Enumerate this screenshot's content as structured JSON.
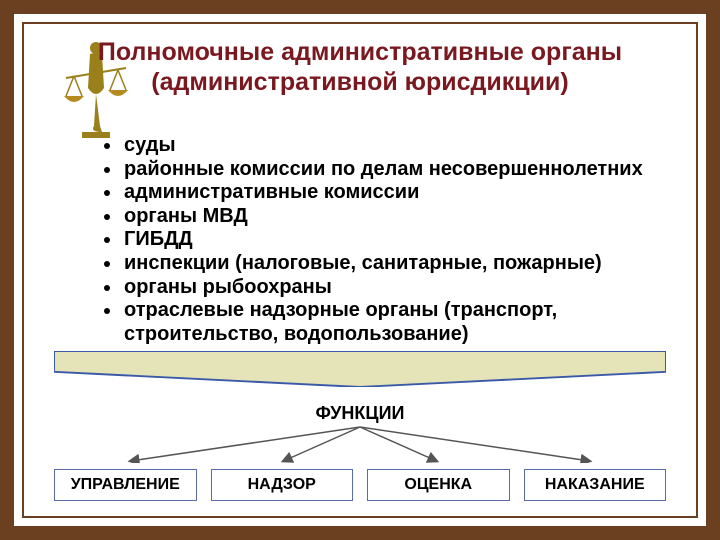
{
  "title": "Полномочные административные органы (административной юрисдикции)",
  "list_items": [
    "суды",
    "районные комиссии по делам несовершеннолетних",
    "административные комиссии",
    "органы МВД",
    "ГИБДД",
    "инспекции (налоговые, санитарные, пожарные)",
    "органы рыбоохраны",
    "отраслевые надзорные органы (транспорт, строительство, водопользование)"
  ],
  "diagram": {
    "functions_label": "ФУНКЦИИ",
    "top_bar_fill": "#e5e3b8",
    "top_bar_stroke": "#3a5aa8",
    "arrow_color": "#555",
    "boxes": [
      "УПРАВЛЕНИЕ",
      "НАДЗОР",
      "ОЦЕНКА",
      "НАКАЗАНИЕ"
    ]
  },
  "colors": {
    "frame": "#6b4020",
    "title_color": "#7a1820",
    "figure_color": "#9a7f1a",
    "scales_color": "#b58a1e"
  }
}
